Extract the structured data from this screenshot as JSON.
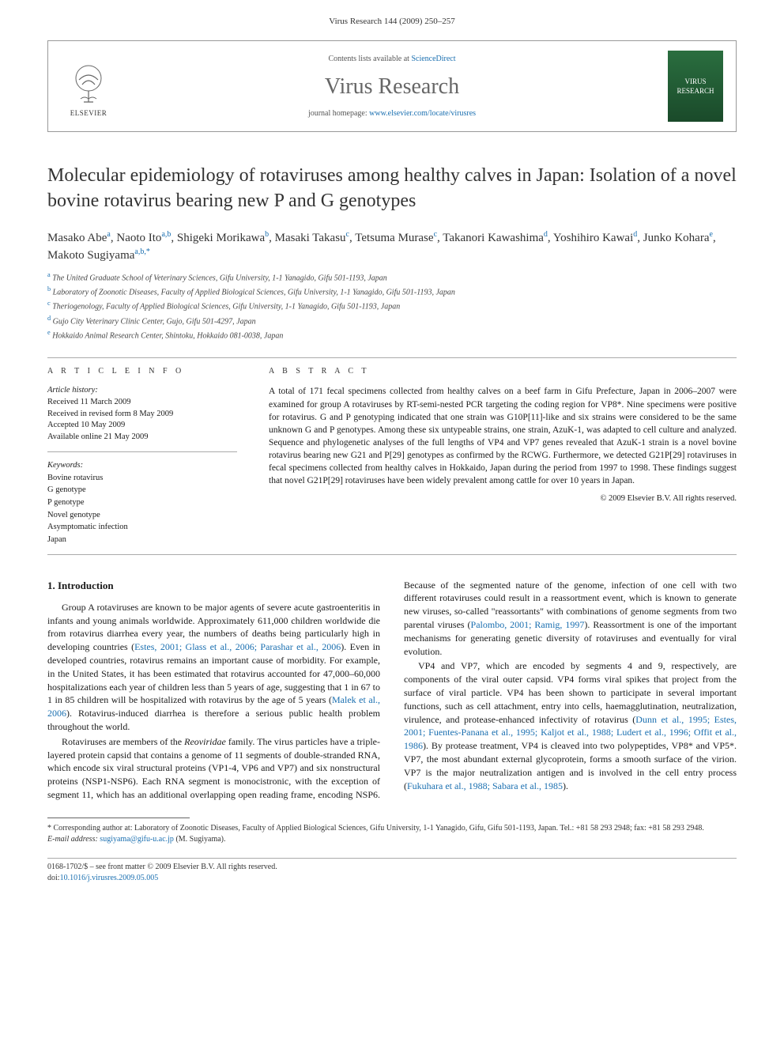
{
  "header": {
    "citation": "Virus Research 144 (2009) 250–257"
  },
  "masthead": {
    "publisher": "ELSEVIER",
    "contents_prefix": "Contents lists available at ",
    "contents_link": "ScienceDirect",
    "journal_name": "Virus Research",
    "homepage_prefix": "journal homepage: ",
    "homepage_url": "www.elsevier.com/locate/virusres",
    "cover_text": "VIRUS RESEARCH"
  },
  "article": {
    "title": "Molecular epidemiology of rotaviruses among healthy calves in Japan: Isolation of a novel bovine rotavirus bearing new P and G genotypes",
    "authors_html": "Masako Abe<sup>a</sup>, Naoto Ito<sup>a,b</sup>, Shigeki Morikawa<sup>b</sup>, Masaki Takasu<sup>c</sup>, Tetsuma Murase<sup>c</sup>, Takanori Kawashima<sup>d</sup>, Yoshihiro Kawai<sup>d</sup>, Junko Kohara<sup>e</sup>, Makoto Sugiyama<sup>a,b,*</sup>",
    "affiliations": [
      {
        "sup": "a",
        "text": "The United Graduate School of Veterinary Sciences, Gifu University, 1-1 Yanagido, Gifu 501-1193, Japan"
      },
      {
        "sup": "b",
        "text": "Laboratory of Zoonotic Diseases, Faculty of Applied Biological Sciences, Gifu University, 1-1 Yanagido, Gifu 501-1193, Japan"
      },
      {
        "sup": "c",
        "text": "Theriogenology, Faculty of Applied Biological Sciences, Gifu University, 1-1 Yanagido, Gifu 501-1193, Japan"
      },
      {
        "sup": "d",
        "text": "Gujo City Veterinary Clinic Center, Gujo, Gifu 501-4297, Japan"
      },
      {
        "sup": "e",
        "text": "Hokkaido Animal Research Center, Shintoku, Hokkaido 081-0038, Japan"
      }
    ]
  },
  "info": {
    "heading": "A R T I C L E   I N F O",
    "history_label": "Article history:",
    "history": [
      "Received 11 March 2009",
      "Received in revised form 8 May 2009",
      "Accepted 10 May 2009",
      "Available online 21 May 2009"
    ],
    "keywords_label": "Keywords:",
    "keywords": [
      "Bovine rotavirus",
      "G genotype",
      "P genotype",
      "Novel genotype",
      "Asymptomatic infection",
      "Japan"
    ]
  },
  "abstract": {
    "heading": "A B S T R A C T",
    "text": "A total of 171 fecal specimens collected from healthy calves on a beef farm in Gifu Prefecture, Japan in 2006–2007 were examined for group A rotaviruses by RT-semi-nested PCR targeting the coding region for VP8*. Nine specimens were positive for rotavirus. G and P genotyping indicated that one strain was G10P[11]-like and six strains were considered to be the same unknown G and P genotypes. Among these six untypeable strains, one strain, AzuK-1, was adapted to cell culture and analyzed. Sequence and phylogenetic analyses of the full lengths of VP4 and VP7 genes revealed that AzuK-1 strain is a novel bovine rotavirus bearing new G21 and P[29] genotypes as confirmed by the RCWG. Furthermore, we detected G21P[29] rotaviruses in fecal specimens collected from healthy calves in Hokkaido, Japan during the period from 1997 to 1998. These findings suggest that novel G21P[29] rotaviruses have been widely prevalent among cattle for over 10 years in Japan.",
    "copyright": "© 2009 Elsevier B.V. All rights reserved."
  },
  "body": {
    "section_heading": "1. Introduction",
    "p1_a": "Group A rotaviruses are known to be major agents of severe acute gastroenteritis in infants and young animals worldwide. Approximately 611,000 children worldwide die from rotavirus diarrhea every year, the numbers of deaths being particularly high in developing countries (",
    "p1_ref1": "Estes, 2001; Glass et al., 2006; Parashar et al., 2006",
    "p1_b": "). Even in developed countries, rotavirus remains an important cause of morbidity. For example, in the United States, it has been estimated that rotavirus accounted for 47,000–60,000 hospitalizations each year of children less than 5 years of age, suggesting that 1 in 67 to 1 in 85 children will be hospitalized with rotavirus by the age of 5 years (",
    "p1_ref2": "Malek et al., 2006",
    "p1_c": "). Rotavirus-induced diarrhea is therefore a serious public health problem throughout the world.",
    "p2_a": "Rotaviruses are members of the ",
    "p2_em": "Reoviridae",
    "p2_b": " family. The virus particles have a triple-layered protein capsid that contains a genome of 11 segments of double-stranded RNA, which encode six viral structural proteins (VP1-4, VP6 and VP7) and six nonstructural proteins (NSP1-NSP6). Each RNA segment is monocistronic, with the exception of segment 11, which has an additional overlapping open reading frame, encoding NSP6. Because of the segmented nature of the genome, infection of one cell with two different rotaviruses could result in a reassortment event, which is known to generate new viruses, so-called \"reassortants\" with combinations of genome segments from two parental viruses (",
    "p2_ref1": "Palombo, 2001; Ramig, 1997",
    "p2_c": "). Reassortment is one of the important mechanisms for generating genetic diversity of rotaviruses and eventually for viral evolution.",
    "p3_a": "VP4 and VP7, which are encoded by segments 4 and 9, respectively, are components of the viral outer capsid. VP4 forms viral spikes that project from the surface of viral particle. VP4 has been shown to participate in several important functions, such as cell attachment, entry into cells, haemagglutination, neutralization, virulence, and protease-enhanced infectivity of rotavirus (",
    "p3_ref1": "Dunn et al., 1995; Estes, 2001; Fuentes-Panana et al., 1995; Kaljot et al., 1988; Ludert et al., 1996; Offit et al., 1986",
    "p3_b": "). By protease treatment, VP4 is cleaved into two polypeptides, VP8* and VP5*. VP7, the most abundant external glycoprotein, forms a smooth surface of the virion. VP7 is the major neutralization antigen and is involved in the cell entry process (",
    "p3_ref2": "Fukuhara et al., 1988; Sabara et al., 1985",
    "p3_c": ")."
  },
  "footnotes": {
    "corr": "* Corresponding author at: Laboratory of Zoonotic Diseases, Faculty of Applied Biological Sciences, Gifu University, 1-1 Yanagido, Gifu, Gifu 501-1193, Japan. Tel.: +81 58 293 2948; fax: +81 58 293 2948.",
    "email_label": "E-mail address: ",
    "email": "sugiyama@gifu-u.ac.jp",
    "email_suffix": " (M. Sugiyama)."
  },
  "footer": {
    "issn": "0168-1702/$ – see front matter © 2009 Elsevier B.V. All rights reserved.",
    "doi_label": "doi:",
    "doi": "10.1016/j.virusres.2009.05.005"
  },
  "colors": {
    "link": "#1a6fb0",
    "rule": "#aaaaaa",
    "cover_bg_top": "#2a6e3f",
    "cover_bg_bot": "#1a4a2a"
  }
}
